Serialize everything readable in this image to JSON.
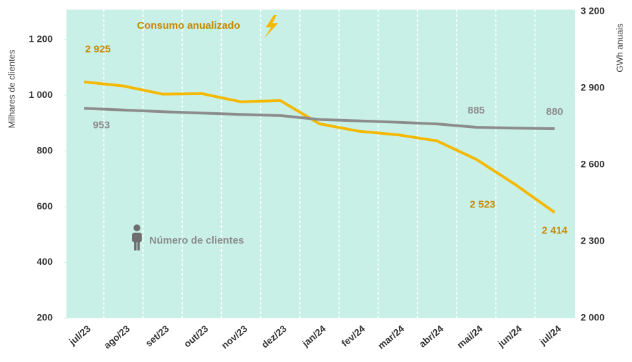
{
  "chart_data": {
    "type": "line",
    "y_label": "Milhares de clientes",
    "y2_label": "GWh anuais",
    "categories": [
      "jul/23",
      "ago/23",
      "set/23",
      "out/23",
      "nov/23",
      "dez/23",
      "jan/24",
      "fev/24",
      "mar/24",
      "abr/24",
      "mai/24",
      "jun/24",
      "jul/24"
    ],
    "series": [
      {
        "name": "Consumo anualizado",
        "color": "#f5b800",
        "label_color": "#c98800",
        "axis": "y2",
        "values": [
          2925,
          2909,
          2877,
          2879,
          2847,
          2852,
          2761,
          2732,
          2718,
          2694,
          2622,
          2523,
          2414
        ],
        "value_labels": [
          "2 925",
          null,
          null,
          null,
          null,
          null,
          null,
          null,
          null,
          null,
          null,
          "2 523",
          "2 414"
        ]
      },
      {
        "name": "Número de clientes",
        "color": "#8c8c8c",
        "label_color": "#8c8c8c",
        "axis": "y",
        "values": [
          953,
          947,
          941,
          936,
          931,
          927,
          913,
          908,
          903,
          897,
          885,
          882,
          880
        ],
        "value_labels": [
          "953",
          null,
          null,
          null,
          null,
          null,
          null,
          null,
          null,
          null,
          "885",
          null,
          "880"
        ]
      }
    ],
    "ylim": [
      200,
      1300
    ],
    "yticks": [
      200,
      400,
      600,
      800,
      {
        "value": 1000,
        "label": "1 000"
      },
      {
        "value": 1200,
        "label": "1 200"
      }
    ],
    "y2lim": [
      2000,
      3200
    ],
    "y2ticks": [
      {
        "value": 2000,
        "label": "2 000"
      },
      {
        "value": 2300,
        "label": "2 300"
      },
      {
        "value": 2600,
        "label": "2 600"
      },
      {
        "value": 2900,
        "label": "2 900"
      },
      {
        "value": 3200,
        "label": "3 200"
      }
    ],
    "background": "#c9f0e6"
  }
}
